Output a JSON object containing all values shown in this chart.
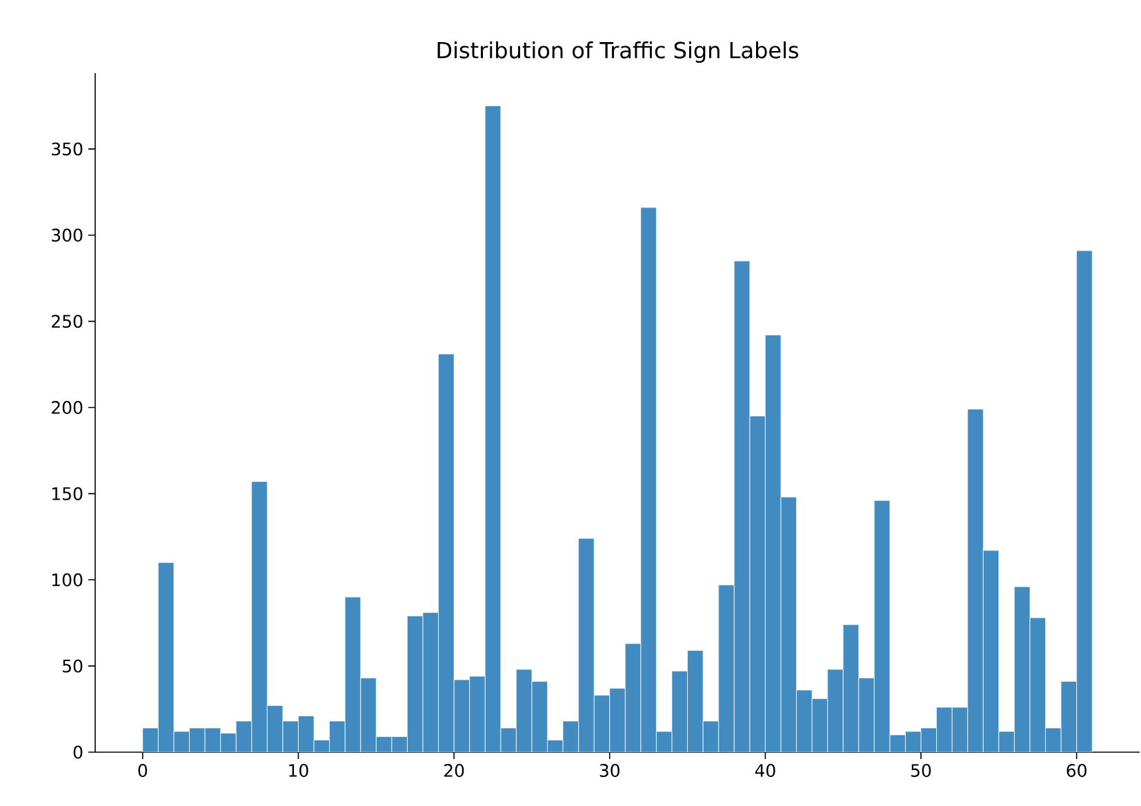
{
  "chart_data": {
    "type": "histogram",
    "title": "Distribution of Traffic Sign Labels",
    "bins": [
      0,
      1,
      2,
      3,
      4,
      5,
      6,
      7,
      8,
      9,
      10,
      11,
      12,
      13,
      14,
      15,
      16,
      17,
      18,
      19,
      20,
      21,
      22,
      23,
      24,
      25,
      26,
      27,
      28,
      29,
      30,
      31,
      32,
      33,
      34,
      35,
      36,
      37,
      38,
      39,
      40,
      41,
      42,
      43,
      44,
      45,
      46,
      47,
      48,
      49,
      50,
      51,
      52,
      53,
      54,
      55,
      56,
      57,
      58,
      59,
      60,
      61
    ],
    "values": [
      14,
      110,
      12,
      14,
      14,
      11,
      18,
      157,
      27,
      18,
      21,
      7,
      18,
      90,
      43,
      9,
      9,
      79,
      81,
      231,
      42,
      44,
      375,
      14,
      48,
      41,
      7,
      18,
      124,
      33,
      37,
      63,
      316,
      12,
      47,
      59,
      18,
      97,
      285,
      195,
      242,
      148,
      36,
      31,
      48,
      74,
      43,
      146,
      10,
      12,
      14,
      26,
      26,
      199,
      117,
      12,
      96,
      78,
      14,
      41,
      291
    ],
    "color": "#428bc1",
    "xlim": [
      -3.05,
      64.05
    ],
    "ylim": [
      0,
      394
    ],
    "xticks": [
      0,
      10,
      20,
      30,
      40,
      50,
      60
    ],
    "yticks": [
      0,
      50,
      100,
      150,
      200,
      250,
      300,
      350
    ],
    "grid": false
  }
}
